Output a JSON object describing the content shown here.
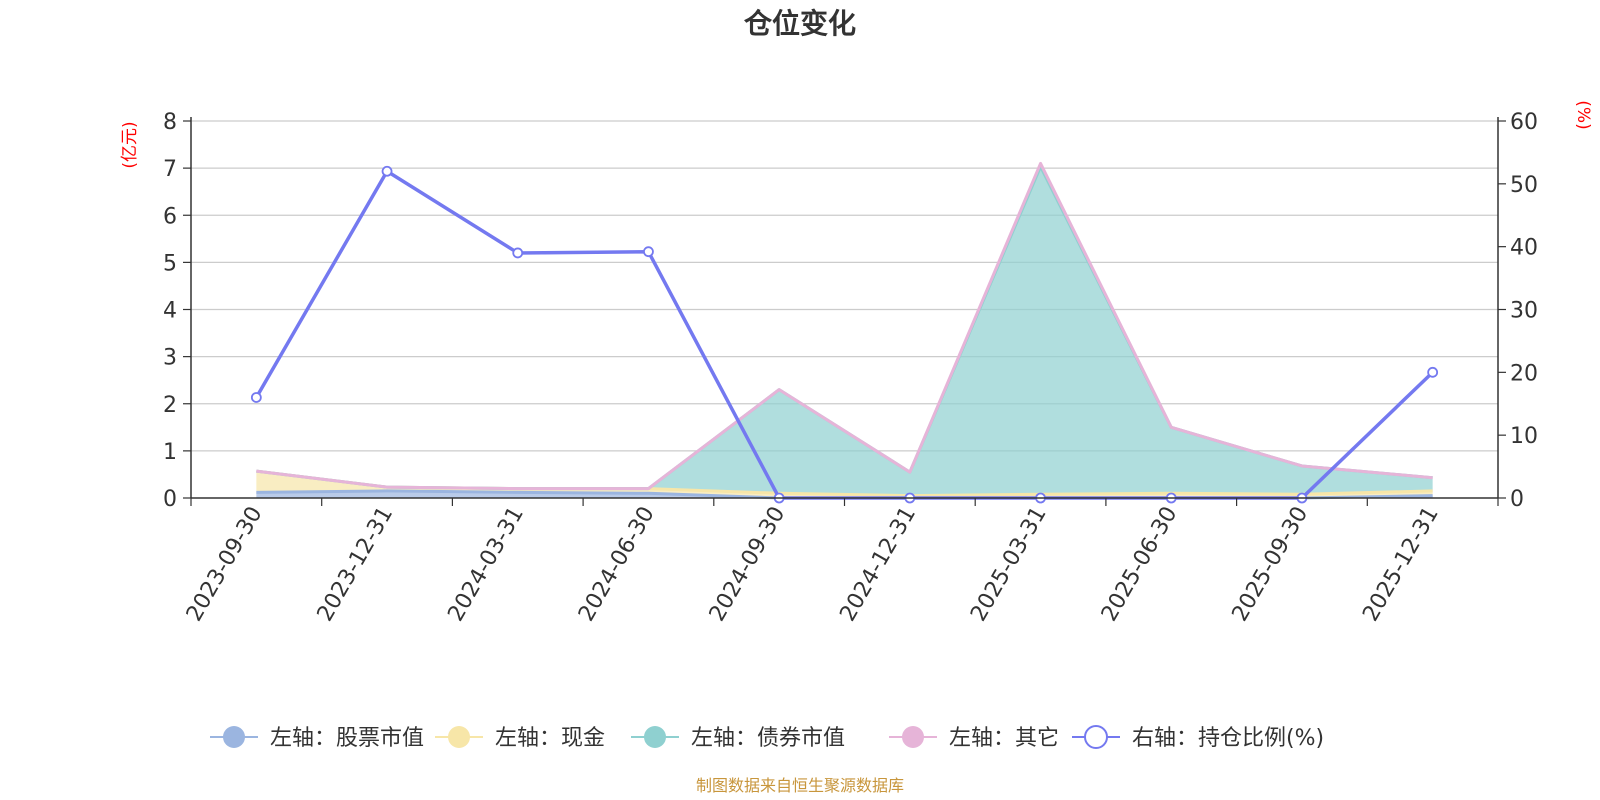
{
  "chart_data": {
    "type": "area",
    "title": "仓位变化",
    "left_unit": "(亿元)",
    "right_unit": "(%)",
    "categories": [
      "2023-09-30",
      "2023-12-31",
      "2024-03-31",
      "2024-06-30",
      "2024-09-30",
      "2024-12-31",
      "2025-03-31",
      "2025-06-30",
      "2025-09-30",
      "2025-12-31"
    ],
    "ylim_left": [
      0,
      8
    ],
    "ylim_right": [
      0,
      60
    ],
    "yticks_left": [
      "0",
      "1",
      "2",
      "3",
      "4",
      "5",
      "6",
      "7",
      "8"
    ],
    "yticks_right": [
      "0",
      "10",
      "20",
      "30",
      "40",
      "50",
      "60"
    ],
    "stacked_series": [
      {
        "name": "左轴：股票市值",
        "axis": "left",
        "color": "#9bb5e0",
        "values": [
          0.12,
          0.15,
          0.12,
          0.1,
          0.0,
          0.0,
          0.0,
          0.0,
          0.0,
          0.05
        ]
      },
      {
        "name": "左轴：现金",
        "axis": "left",
        "color": "#f7e6a8",
        "values": [
          0.45,
          0.08,
          0.08,
          0.1,
          0.1,
          0.05,
          0.08,
          0.1,
          0.08,
          0.1
        ]
      },
      {
        "name": "左轴：债券市值",
        "axis": "left",
        "color": "#8fd0d0",
        "values": [
          0.0,
          0.0,
          0.0,
          0.0,
          2.2,
          0.5,
          6.95,
          1.4,
          0.6,
          0.28
        ]
      },
      {
        "name": "左轴：其它",
        "axis": "left",
        "color": "#e6b4d8",
        "values": [
          0.0,
          0.0,
          0.0,
          0.0,
          0.0,
          0.0,
          0.07,
          0.0,
          0.0,
          0.0
        ]
      }
    ],
    "line_series": {
      "name": "右轴：持仓比例(%)",
      "axis": "right",
      "color": "#7479f0",
      "values": [
        16,
        52,
        39,
        39.2,
        0,
        0,
        0,
        0,
        0,
        20
      ]
    },
    "grid": true,
    "legend_position": "bottom"
  },
  "footer": {
    "source": "制图数据来自恒生聚源数据库"
  }
}
